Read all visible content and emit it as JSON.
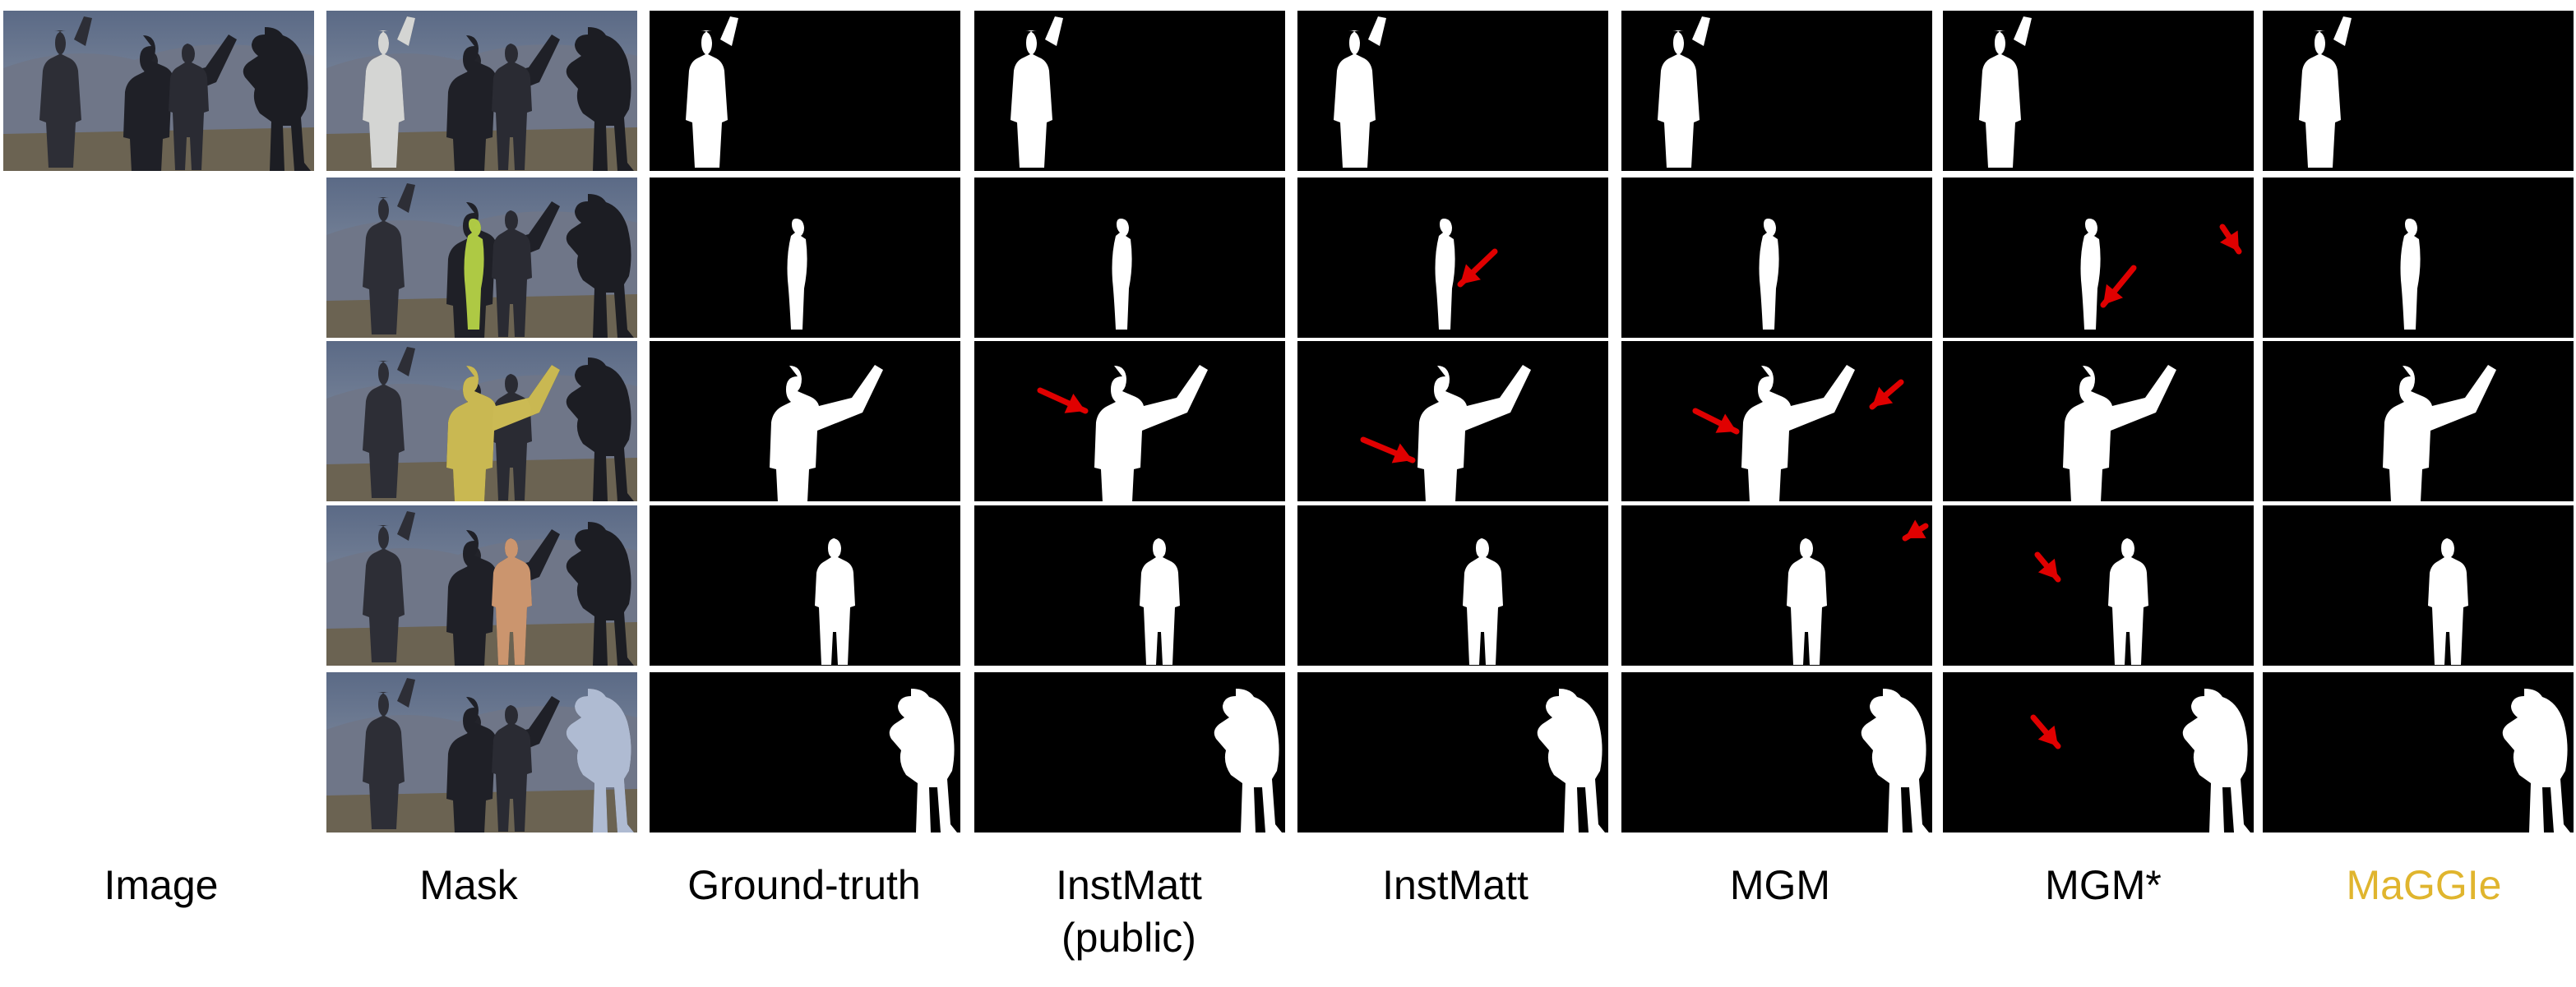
{
  "columns": [
    {
      "id": "image",
      "label": "Image"
    },
    {
      "id": "mask",
      "label": "Mask"
    },
    {
      "id": "gt",
      "label": "Ground-truth"
    },
    {
      "id": "instmatt_public",
      "label": "InstMatt\n(public)"
    },
    {
      "id": "instmatt",
      "label": "InstMatt"
    },
    {
      "id": "mgm",
      "label": "MGM"
    },
    {
      "id": "mgm_star",
      "label": "MGM*"
    },
    {
      "id": "maggie",
      "label": "MaGGIe",
      "color": "#e0b52e"
    }
  ],
  "rows": 5,
  "mask_colors": [
    "#f2f2ee",
    "#c8e84a",
    "#e7d35a",
    "#e7a879",
    "#c9d7f1"
  ],
  "arrow_color": "#e00000",
  "matte_color": "#000000",
  "foreground_color": "#ffffff"
}
